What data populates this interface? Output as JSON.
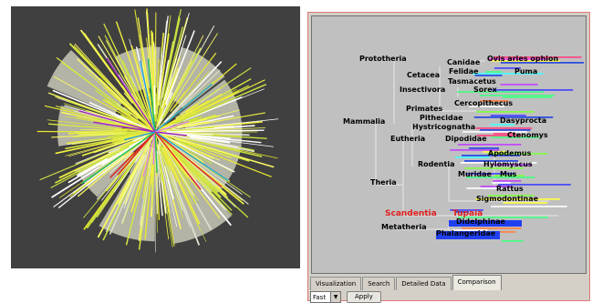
{
  "tabs": [
    {
      "label": "Visualization"
    },
    {
      "label": "Search"
    },
    {
      "label": "Detailed Data"
    },
    {
      "label": "Comparison"
    }
  ],
  "controls": {
    "speed_value": "Fast",
    "apply_label": "Apply"
  },
  "colors": {
    "left_background": "#404040",
    "right_background": "#c0c0c0",
    "highlight": "#e02020"
  },
  "tree_labels": {
    "prototheria": "Prototheria",
    "canidae": "Canidae",
    "ovis": "Ovis aries ophion",
    "felidae": "Felidae",
    "puma": "Puma",
    "cetacea": "Cetacea",
    "tasmacetus": "Tasmacetus",
    "insectivora": "Insectivora",
    "sorex": "Sorex",
    "primates": "Primates",
    "cercopithecus": "Cercopithecus",
    "mammalia": "Mammalia",
    "pithecidae": "Pithecidae",
    "hystricognatha": "Hystricognatha",
    "dasyprocta": "Dasyprocta",
    "eutheria": "Eutheria",
    "dipodidae": "Dipodidae",
    "ctenomys": "Ctenomys",
    "apodemus": "Apodemus",
    "rodentia": "Rodentia",
    "hylomyscus": "Hylomyscus",
    "muridae": "Muridae",
    "mus": "Mus",
    "theria": "Theria",
    "rattus": "Rattus",
    "sigmodontinae": "Sigmodontinae",
    "scandentia": "Scandentia",
    "tupaia": "Tupaia",
    "didelphinae": "Didelphinae",
    "metatheria": "Metatheria",
    "phalangeridae": "Phalangeridae"
  }
}
